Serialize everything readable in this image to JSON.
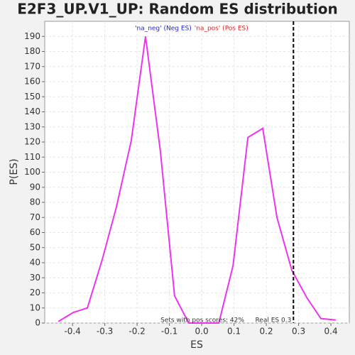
{
  "chart_data": {
    "type": "line",
    "title": "E2F3_UP.V1_UP: Random ES distribution",
    "x_label": "ES",
    "y_label": "P(ES)",
    "legend": [
      {
        "label": "'na_neg' (Neg ES)",
        "color": "#2222cc"
      },
      {
        "label": "'na_pos' (Pos ES)",
        "color": "#dd2222"
      }
    ],
    "x": [
      -0.444,
      -0.398,
      -0.354,
      -0.308,
      -0.264,
      -0.218,
      -0.174,
      -0.128,
      -0.084,
      -0.04,
      0.007,
      0.053,
      0.097,
      0.143,
      0.189,
      0.233,
      0.279,
      0.325,
      0.369,
      0.415
    ],
    "series": [
      {
        "color": "#ee33ee",
        "values": [
          1,
          7,
          10,
          42,
          77,
          121,
          190,
          114,
          18,
          0,
          0,
          0,
          38,
          123,
          129,
          70,
          35,
          17,
          3,
          2
        ]
      }
    ],
    "xlim": [
      -0.486,
      0.457
    ],
    "ylim": [
      0,
      200
    ],
    "xticks": [
      -0.4,
      -0.3,
      -0.2,
      -0.1,
      {
        "value": 0,
        "label": "0.0"
      },
      0.1,
      0.2,
      0.3,
      0.4
    ],
    "yticks": [
      0,
      10,
      20,
      30,
      40,
      50,
      60,
      70,
      80,
      90,
      100,
      110,
      120,
      130,
      140,
      150,
      160,
      170,
      180,
      190
    ],
    "grid": true,
    "real_es": {
      "value": 0.284,
      "label": "Real ES 0.3"
    },
    "annotation": "Sets with pos scores: 42%"
  }
}
